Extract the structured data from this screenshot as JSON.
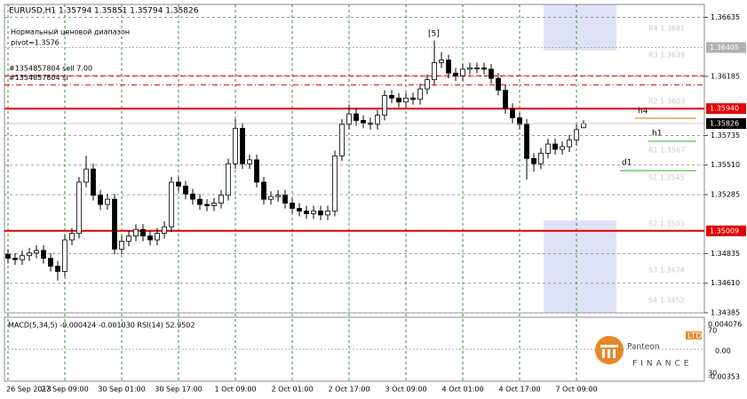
{
  "chart_data": {
    "type": "candlestick",
    "title": "EURUSD,H1 1.35794 1.35851 1.35794 1.35826",
    "annotations": [
      "Нормальный ценовой диапазон",
      "pivot=1.3576",
      "[5]",
      "h4",
      "h1",
      "d1"
    ],
    "orders": [
      {
        "label": "#1354857804 sell 7.00",
        "value": 1.3619
      },
      {
        "label": "#1354857804 sl",
        "value": 1.3612
      }
    ],
    "hlines": [
      {
        "value": 1.3594,
        "label": "1.35940",
        "color": "#e00000"
      },
      {
        "value": 1.35009,
        "label": "1.35009",
        "color": "#e00000"
      },
      {
        "value": 1.36405,
        "label": "1.36405",
        "color": "#b0b0b0"
      }
    ],
    "levels": [
      "R4 1.3681",
      "R3 1.3638",
      "R2 1.3603",
      "R1 1.3567",
      "S1 1.3545",
      "S2 1.3503",
      "S3 1.3474",
      "S4 1.3452"
    ],
    "indicator": {
      "title": "MACD(5,34,5) -0.000424 -0.001030 RSI(14) 52.9502",
      "ticks": [
        "0.004076",
        "70",
        "0.00",
        "30",
        "-0.00353"
      ]
    },
    "logo": {
      "name": "Panteon",
      "sub": "FINANCE",
      "tag": "LTD"
    },
    "categories": [
      "26 Sep 2013",
      null,
      null,
      null,
      null,
      null,
      null,
      null,
      "27 Sep 09:00",
      null,
      null,
      null,
      null,
      null,
      null,
      null,
      "30 Sep 01:00",
      null,
      null,
      null,
      null,
      null,
      null,
      null,
      "30 Sep 17:00",
      null,
      null,
      null,
      null,
      null,
      null,
      null,
      "1 Oct 09:00",
      null,
      null,
      null,
      null,
      null,
      null,
      null,
      "2 Oct 01:00",
      null,
      null,
      null,
      null,
      null,
      null,
      null,
      "2 Oct 17:00",
      null,
      null,
      null,
      null,
      null,
      null,
      null,
      "3 Oct 09:00",
      null,
      null,
      null,
      null,
      null,
      null,
      null,
      "4 Oct 01:00",
      null,
      null,
      null,
      null,
      null,
      null,
      null,
      "4 Oct 17:00",
      null,
      null,
      null,
      null,
      null,
      null,
      null,
      "7 Oct 09:00",
      null
    ],
    "open": [
      1.3483,
      1.348,
      1.3479,
      1.3482,
      1.3484,
      1.3486,
      1.348,
      1.3474,
      1.347,
      1.3494,
      1.3499,
      1.3538,
      1.3548,
      1.3528,
      1.3521,
      1.3525,
      1.3487,
      1.3493,
      1.3497,
      1.3502,
      1.3497,
      1.3494,
      1.3499,
      1.3504,
      1.3538,
      1.3535,
      1.3529,
      1.3525,
      1.3521,
      1.352,
      1.3522,
      1.3528,
      1.3552,
      1.3579,
      1.3552,
      1.3555,
      1.3538,
      1.3525,
      1.3527,
      1.3528,
      1.3522,
      1.3518,
      1.3516,
      1.3514,
      1.3516,
      1.3513,
      1.3516,
      1.3558,
      1.3582,
      1.359,
      1.3585,
      1.3583,
      1.3582,
      1.3589,
      1.3604,
      1.3602,
      1.3599,
      1.3602,
      1.3601,
      1.3609,
      1.3616,
      1.3629,
      1.3631,
      1.3621,
      1.3619,
      1.3624,
      1.3625,
      1.3625,
      1.3624,
      1.3617,
      1.3608,
      1.3594,
      1.3587,
      1.3582,
      1.3556,
      1.3552,
      1.356,
      1.3567,
      1.3563,
      1.3565,
      1.357,
      1.35794
    ],
    "high": [
      1.3487,
      1.3484,
      1.3486,
      1.3488,
      1.349,
      1.349,
      1.3484,
      1.3478,
      1.3498,
      1.3503,
      1.3542,
      1.3558,
      1.3552,
      1.3532,
      1.3529,
      1.3529,
      1.3497,
      1.3501,
      1.3506,
      1.3506,
      1.3501,
      1.3503,
      1.3508,
      1.3542,
      1.3542,
      1.3539,
      1.3533,
      1.3529,
      1.3525,
      1.3526,
      1.3532,
      1.3556,
      1.3586,
      1.3583,
      1.3559,
      1.3559,
      1.3542,
      1.3531,
      1.3532,
      1.3532,
      1.3526,
      1.3522,
      1.352,
      1.352,
      1.352,
      1.352,
      1.3562,
      1.3586,
      1.3597,
      1.3594,
      1.3589,
      1.3587,
      1.3593,
      1.3608,
      1.3608,
      1.3606,
      1.3606,
      1.3606,
      1.3613,
      1.362,
      1.3646,
      1.3637,
      1.3635,
      1.3625,
      1.3628,
      1.3629,
      1.3629,
      1.3629,
      1.3628,
      1.3621,
      1.3612,
      1.3598,
      1.3591,
      1.3586,
      1.356,
      1.3564,
      1.3571,
      1.3571,
      1.3569,
      1.3574,
      1.3582,
      1.35851
    ],
    "low": [
      1.3476,
      1.3475,
      1.3475,
      1.3478,
      1.348,
      1.3476,
      1.347,
      1.3463,
      1.3466,
      1.349,
      1.3495,
      1.3534,
      1.3524,
      1.3517,
      1.3517,
      1.3483,
      1.3483,
      1.3489,
      1.3493,
      1.3493,
      1.349,
      1.349,
      1.3495,
      1.35,
      1.3531,
      1.3525,
      1.3521,
      1.3517,
      1.3516,
      1.3516,
      1.3518,
      1.3524,
      1.3548,
      1.3548,
      1.3548,
      1.3534,
      1.3521,
      1.3521,
      1.3523,
      1.3518,
      1.3514,
      1.3512,
      1.351,
      1.351,
      1.3509,
      1.3509,
      1.3512,
      1.3554,
      1.3578,
      1.3581,
      1.3579,
      1.3578,
      1.3578,
      1.3585,
      1.3598,
      1.3595,
      1.3595,
      1.3597,
      1.3597,
      1.3605,
      1.3612,
      1.3625,
      1.3617,
      1.3615,
      1.3615,
      1.362,
      1.3621,
      1.362,
      1.3613,
      1.3604,
      1.359,
      1.3583,
      1.3578,
      1.354,
      1.3546,
      1.3548,
      1.3556,
      1.3559,
      1.3559,
      1.3561,
      1.3566,
      1.35794
    ],
    "close": [
      1.348,
      1.3479,
      1.3482,
      1.3484,
      1.3486,
      1.348,
      1.3474,
      1.347,
      1.3494,
      1.3499,
      1.3538,
      1.3548,
      1.3528,
      1.3521,
      1.3525,
      1.3487,
      1.3493,
      1.3497,
      1.3502,
      1.3497,
      1.3494,
      1.3499,
      1.3504,
      1.3538,
      1.3535,
      1.3529,
      1.3525,
      1.3521,
      1.352,
      1.3522,
      1.3528,
      1.3552,
      1.3579,
      1.3552,
      1.3555,
      1.3538,
      1.3525,
      1.3527,
      1.3528,
      1.3522,
      1.3518,
      1.3516,
      1.3514,
      1.3516,
      1.3513,
      1.3516,
      1.3558,
      1.3582,
      1.359,
      1.3585,
      1.3583,
      1.3582,
      1.3589,
      1.3604,
      1.3602,
      1.3599,
      1.3602,
      1.3601,
      1.3609,
      1.3616,
      1.3629,
      1.3631,
      1.3621,
      1.3619,
      1.3624,
      1.3625,
      1.3625,
      1.3624,
      1.3617,
      1.3608,
      1.3594,
      1.3587,
      1.3582,
      1.3556,
      1.3552,
      1.356,
      1.3567,
      1.3563,
      1.3565,
      1.357,
      1.3578,
      1.35826
    ],
    "ylim": [
      1.34385,
      1.36733
    ],
    "yticks": [
      1.36635,
      1.36185,
      1.35735,
      {
        "value": 1.3551,
        "label": "1.35510"
      },
      1.35285,
      1.34835,
      {
        "value": 1.3461,
        "label": "1.34610"
      },
      1.34385
    ],
    "grid": true,
    "bull_color": "#ffffff",
    "bear_color": "#000000"
  }
}
